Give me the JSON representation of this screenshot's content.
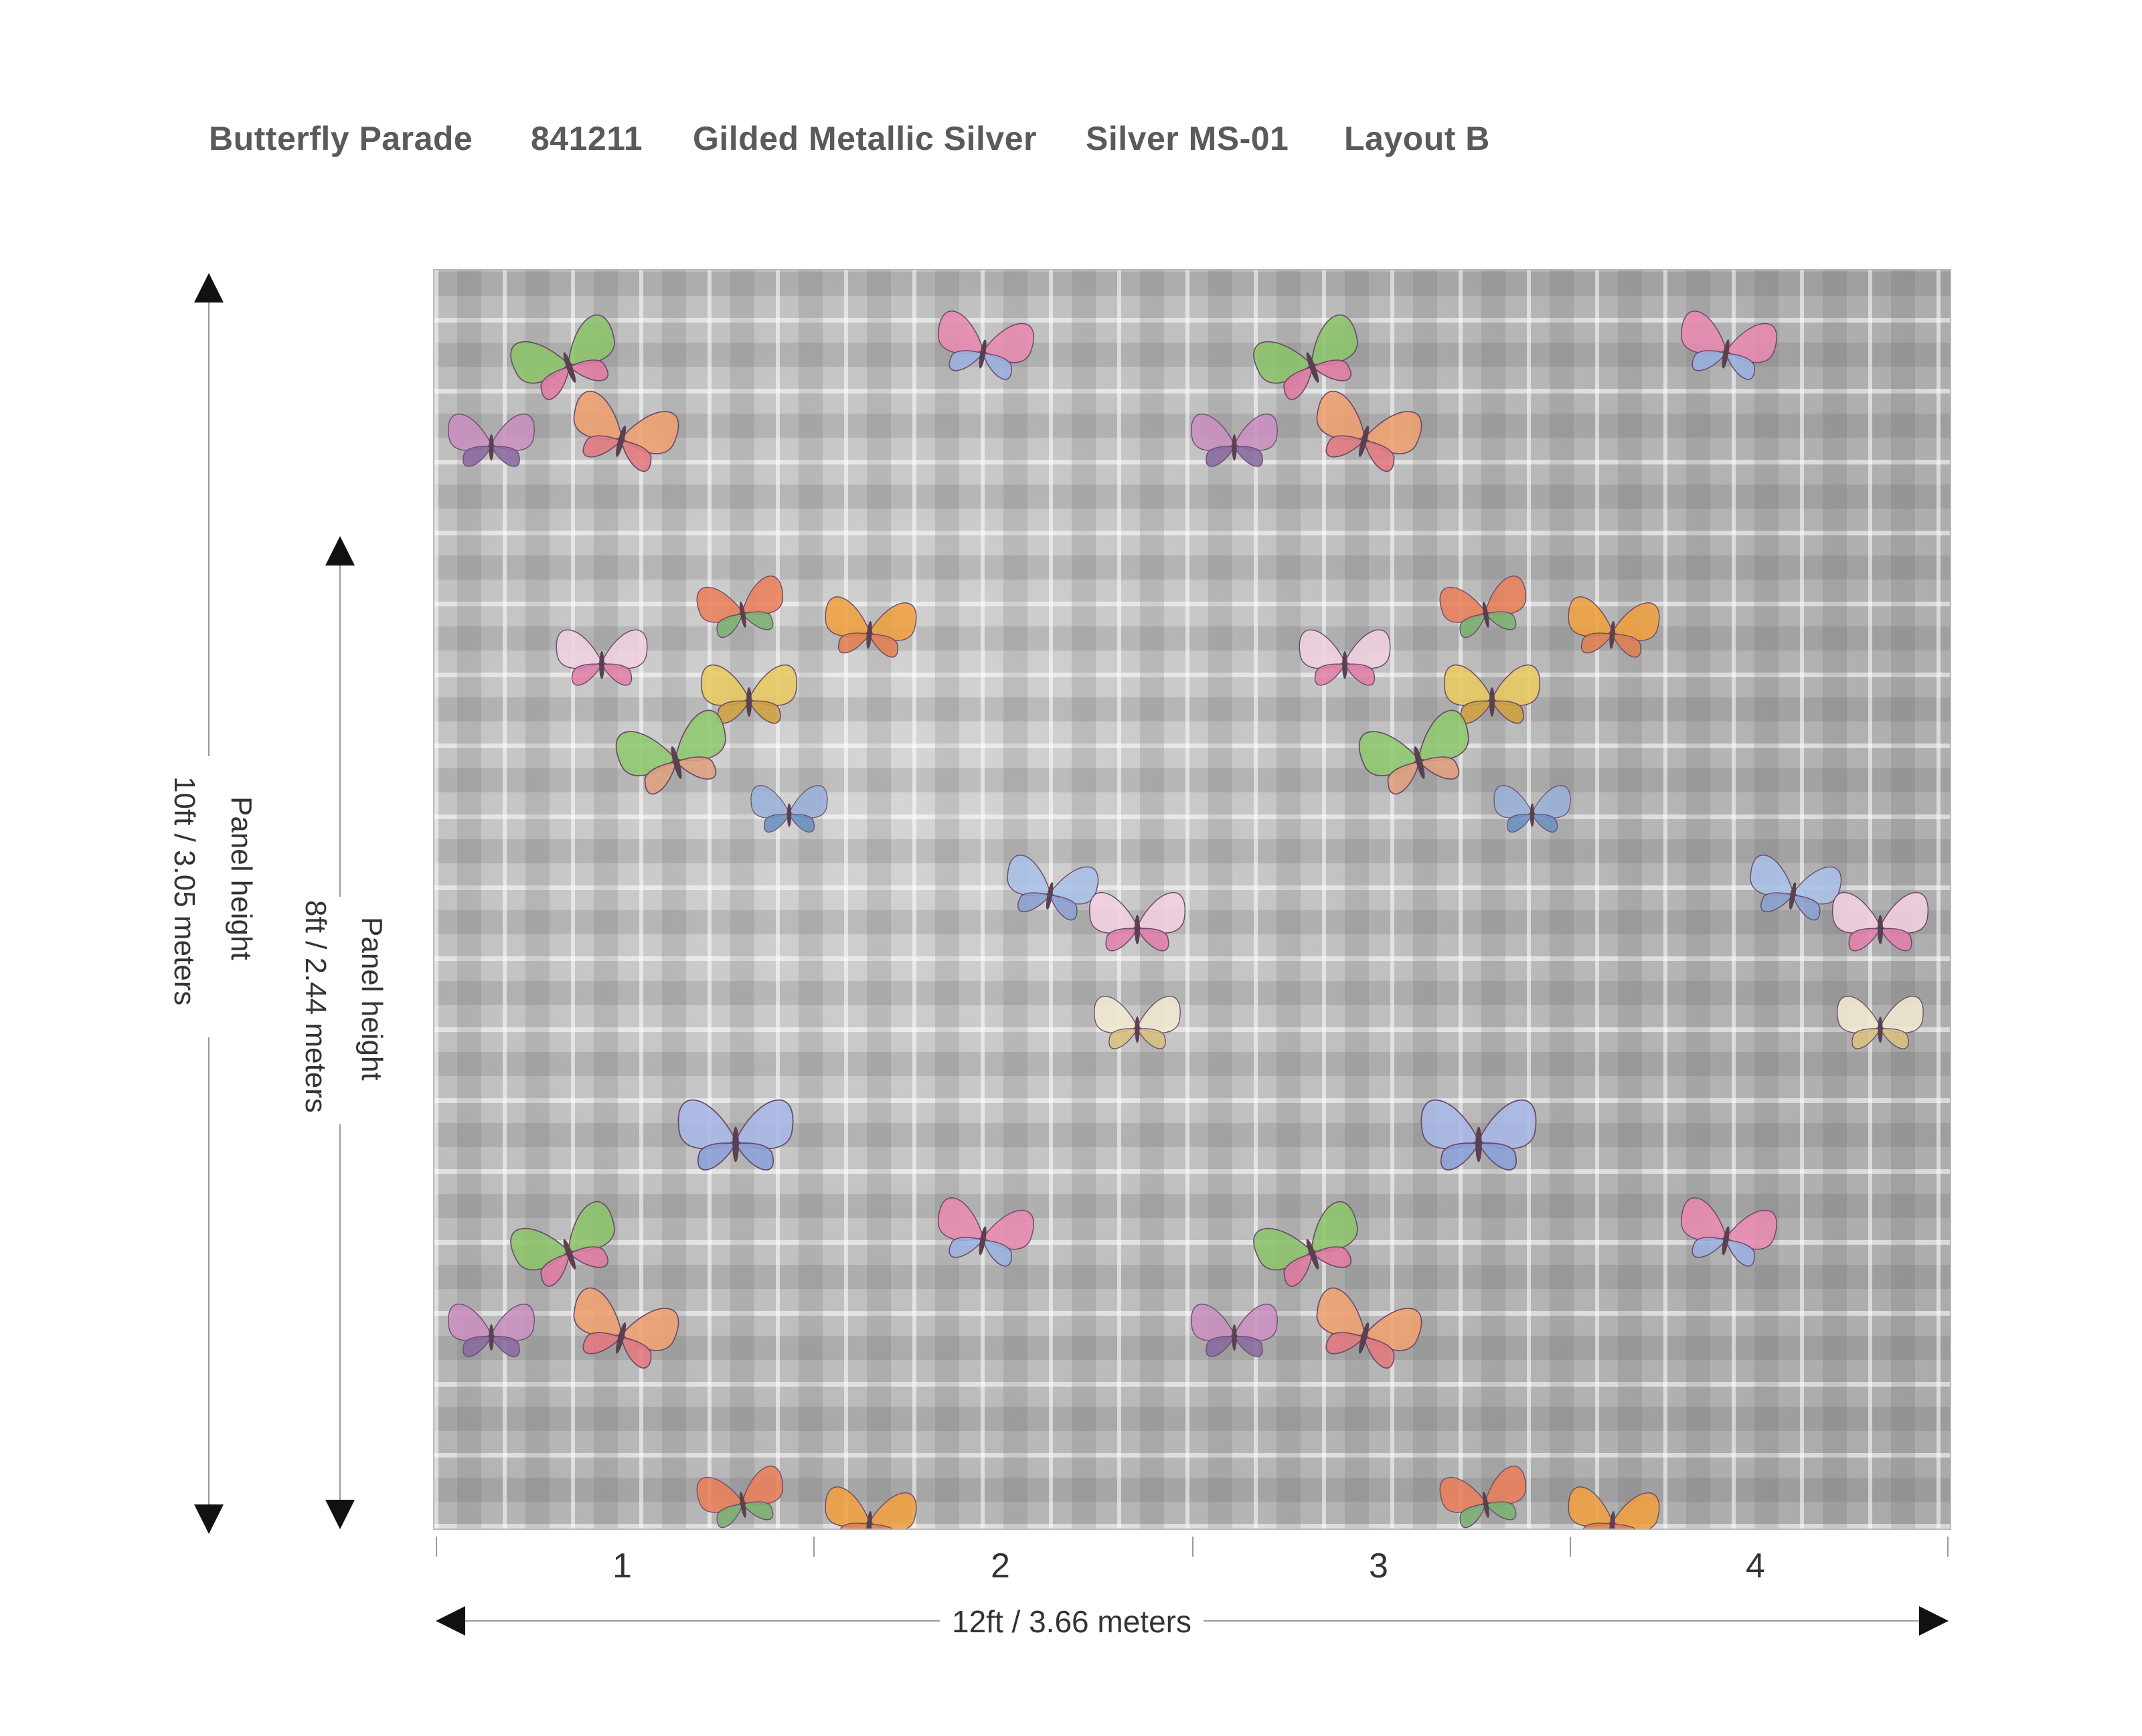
{
  "header": {
    "pattern_name": "Butterfly Parade",
    "pattern_number": "841211",
    "finish": "Gilded Metallic Silver",
    "colorway": "Silver MS-01",
    "layout": "Layout B"
  },
  "dimensions": {
    "outer_height_title": "Panel height",
    "outer_height_value": "10ft / 3.05 meters",
    "inner_height_title": "Panel height",
    "inner_height_value": "8ft / 2.44 meters",
    "width_value": "12ft  / 3.66 meters"
  },
  "panels": [
    "1",
    "2",
    "3",
    "4"
  ],
  "colors": {
    "header_text": "#5a5a5a",
    "silver_leaf": "#bfbfbf",
    "arrow": "#111111"
  },
  "icons": {
    "up_arrow": "up-arrow-icon",
    "down_arrow": "down-arrow-icon",
    "left_arrow": "left-arrow-icon",
    "right_arrow": "right-arrow-icon",
    "motif": "butterfly-icon"
  }
}
